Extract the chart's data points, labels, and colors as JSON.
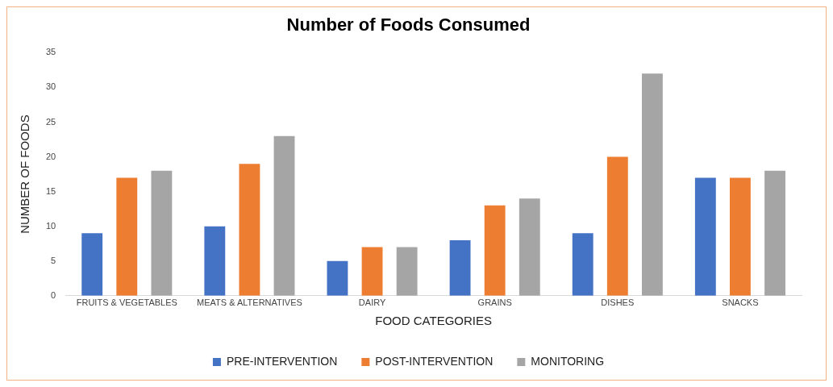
{
  "chart_data": {
    "type": "bar",
    "title": "Number of Foods Consumed",
    "xlabel": "FOOD CATEGORIES",
    "ylabel": "NUMBER OF FOODS",
    "categories": [
      "FRUITS & VEGETABLES",
      "MEATS & ALTERNATIVES",
      "DAIRY",
      "GRAINS",
      "DISHES",
      "SNACKS"
    ],
    "series": [
      {
        "name": "PRE-INTERVENTION",
        "color": "#4472c4",
        "values": [
          9,
          10,
          5,
          8,
          9,
          17
        ]
      },
      {
        "name": "POST-INTERVENTION",
        "color": "#ed7d31",
        "values": [
          17,
          19,
          7,
          13,
          20,
          17
        ]
      },
      {
        "name": "MONITORING",
        "color": "#a5a5a5",
        "values": [
          18,
          23,
          7,
          14,
          32,
          18
        ]
      }
    ],
    "ylim": [
      0,
      35
    ],
    "yticks": [
      0,
      5,
      10,
      15,
      20,
      25,
      30,
      35
    ],
    "grid": false,
    "legend": "bottom"
  }
}
